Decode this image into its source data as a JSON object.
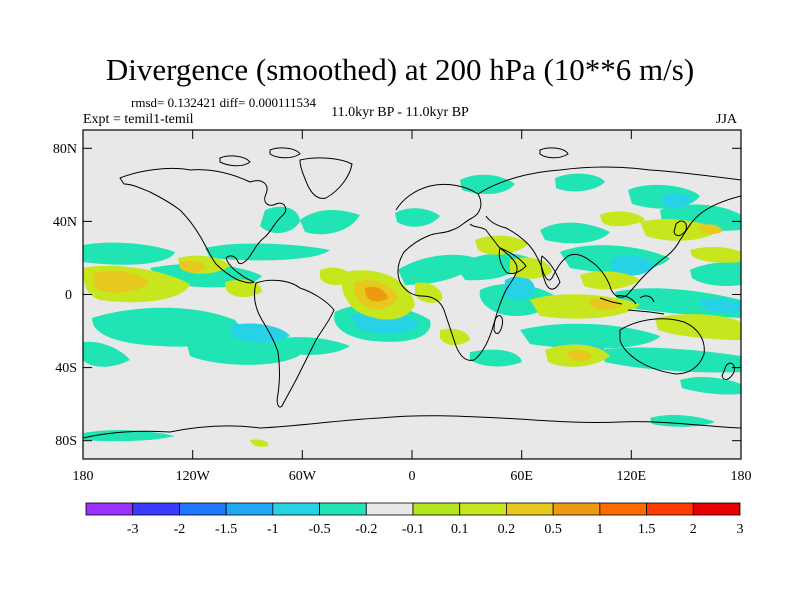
{
  "title": "Divergence (smoothed) at 200 hPa (10**6 m/s)",
  "stats": "rmsd= 0.132421 diff= 0.000111534",
  "experiment": "Expt = temil1-temil",
  "period": "11.0kyr BP - 11.0kyr BP",
  "season": "JJA",
  "map": {
    "lat_ticks": [
      "80N",
      "40N",
      "0",
      "40S",
      "80S"
    ],
    "lon_ticks": [
      "180",
      "120W",
      "60W",
      "0",
      "60E",
      "120E",
      "180"
    ]
  },
  "colorbar": {
    "colors": [
      "#9b30ff",
      "#3b3bff",
      "#1e78ff",
      "#20a8f5",
      "#28d2e6",
      "#20e4b4",
      "#e8e8e8",
      "#b4e61e",
      "#c8e61e",
      "#e6c81e",
      "#ee9a10",
      "#ff6a00",
      "#ff3b00",
      "#e60000"
    ],
    "labels": [
      "-3",
      "-2",
      "-1.5",
      "-1",
      "-0.5",
      "-0.2",
      "-0.1",
      "0.1",
      "0.2",
      "0.5",
      "1",
      "1.5",
      "2",
      "3"
    ]
  }
}
